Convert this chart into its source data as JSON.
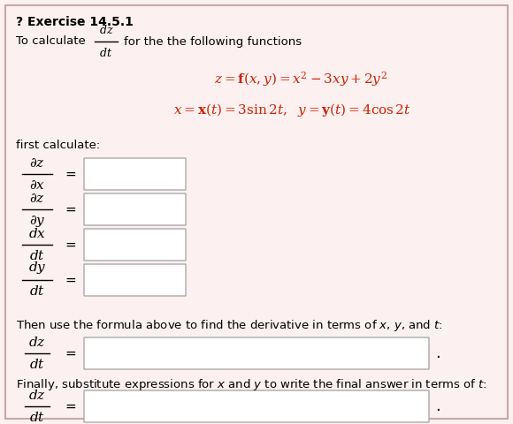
{
  "bg_color": "#fdf0f0",
  "border_color": "#c8a8a8",
  "text_color": "#000000",
  "red_color": "#cc2200",
  "title": "? Exercise 14.5.1",
  "intro_line1": "To calculate",
  "for_text": "for the the following functions",
  "eq1": "$z = \\mathbf{f}(x, y) = x^2 - 3xy + 2y^2$",
  "eq2": "$x = \\mathbf{x}(t) = 3\\sin 2t,\\ \\ y = \\mathbf{y}(t) = 4\\cos 2t$",
  "first_calc": "first calculate:",
  "then_text": "Then use the formula above to find the derivative in terms of $x$, $y$, and $t$:",
  "finally_text": "Finally, substitute expressions for $x$ and $y$ to write the final answer in terms of $t$:",
  "fracs": [
    {
      "num": "\\partial z",
      "den": "\\partial x"
    },
    {
      "num": "\\partial z",
      "den": "\\partial y"
    },
    {
      "num": "dx",
      "den": "dt"
    },
    {
      "num": "dy",
      "den": "dt"
    }
  ],
  "frac_dz_dt_num": "dz",
  "frac_dz_dt_den": "dt"
}
